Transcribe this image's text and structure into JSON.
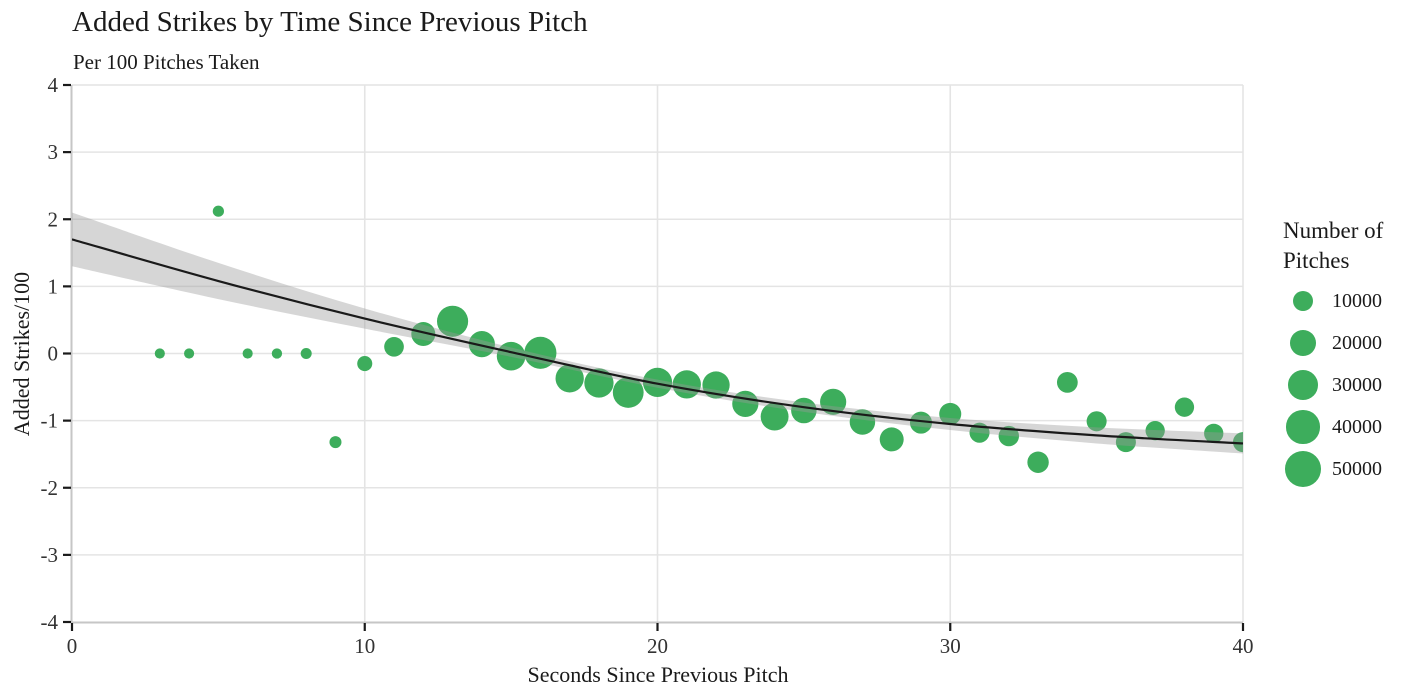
{
  "chart_data": {
    "type": "scatter",
    "title": "Added Strikes by Time Since Previous Pitch",
    "subtitle": "Per 100 Pitches Taken",
    "xlabel": "Seconds Since Previous Pitch",
    "ylabel": "Added Strikes/100",
    "xlim": [
      0,
      40
    ],
    "ylim": [
      -4,
      4
    ],
    "xticks": [
      0,
      10,
      20,
      30,
      40
    ],
    "yticks": [
      4,
      3,
      2,
      1,
      0,
      -1,
      -2,
      -3,
      -4
    ],
    "grid": "major-only",
    "legend": {
      "position": "right",
      "title_lines": [
        "Number of",
        "Pitches"
      ],
      "items": [
        {
          "label": "10000",
          "value": 10000
        },
        {
          "label": "20000",
          "value": 20000
        },
        {
          "label": "30000",
          "value": 30000
        },
        {
          "label": "40000",
          "value": 40000
        },
        {
          "label": "50000",
          "value": 50000
        }
      ]
    },
    "series": [
      {
        "name": "pitches-by-second-bin",
        "type": "bubble",
        "size_encoding": "pitches",
        "points": [
          {
            "x": 3,
            "y": 0.0,
            "pitches": 1500
          },
          {
            "x": 4,
            "y": 0.0,
            "pitches": 1500
          },
          {
            "x": 5,
            "y": 2.12,
            "pitches": 2000
          },
          {
            "x": 6,
            "y": 0.0,
            "pitches": 1500
          },
          {
            "x": 7,
            "y": 0.0,
            "pitches": 1600
          },
          {
            "x": 8,
            "y": 0.0,
            "pitches": 1900
          },
          {
            "x": 9,
            "y": -1.32,
            "pitches": 2400
          },
          {
            "x": 10,
            "y": -0.15,
            "pitches": 4500
          },
          {
            "x": 11,
            "y": 0.1,
            "pitches": 9500
          },
          {
            "x": 12,
            "y": 0.29,
            "pitches": 16500
          },
          {
            "x": 13,
            "y": 0.48,
            "pitches": 34000
          },
          {
            "x": 14,
            "y": 0.14,
            "pitches": 21000
          },
          {
            "x": 15,
            "y": -0.04,
            "pitches": 27000
          },
          {
            "x": 16,
            "y": 0.01,
            "pitches": 37000
          },
          {
            "x": 17,
            "y": -0.37,
            "pitches": 26000
          },
          {
            "x": 18,
            "y": -0.44,
            "pitches": 28500
          },
          {
            "x": 19,
            "y": -0.58,
            "pitches": 33000
          },
          {
            "x": 20,
            "y": -0.43,
            "pitches": 28500
          },
          {
            "x": 21,
            "y": -0.46,
            "pitches": 26000
          },
          {
            "x": 22,
            "y": -0.47,
            "pitches": 23500
          },
          {
            "x": 23,
            "y": -0.75,
            "pitches": 21000
          },
          {
            "x": 24,
            "y": -0.94,
            "pitches": 25000
          },
          {
            "x": 25,
            "y": -0.85,
            "pitches": 19500
          },
          {
            "x": 26,
            "y": -0.72,
            "pitches": 21000
          },
          {
            "x": 27,
            "y": -1.02,
            "pitches": 19500
          },
          {
            "x": 28,
            "y": -1.28,
            "pitches": 16500
          },
          {
            "x": 29,
            "y": -1.03,
            "pitches": 13000
          },
          {
            "x": 30,
            "y": -0.9,
            "pitches": 13000
          },
          {
            "x": 31,
            "y": -1.18,
            "pitches": 10000
          },
          {
            "x": 32,
            "y": -1.23,
            "pitches": 10500
          },
          {
            "x": 33,
            "y": -1.62,
            "pitches": 12000
          },
          {
            "x": 34,
            "y": -0.43,
            "pitches": 11000
          },
          {
            "x": 35,
            "y": -1.01,
            "pitches": 10000
          },
          {
            "x": 36,
            "y": -1.32,
            "pitches": 10000
          },
          {
            "x": 37,
            "y": -1.15,
            "pitches": 9000
          },
          {
            "x": 38,
            "y": -0.8,
            "pitches": 9000
          },
          {
            "x": 39,
            "y": -1.19,
            "pitches": 9000
          },
          {
            "x": 40,
            "y": -1.32,
            "pitches": 10000
          }
        ]
      },
      {
        "name": "smooth-trend",
        "type": "line",
        "points": [
          [
            0,
            1.7
          ],
          [
            5,
            1.08
          ],
          [
            10,
            0.52
          ],
          [
            15,
            0.02
          ],
          [
            20,
            -0.45
          ],
          [
            25,
            -0.8
          ],
          [
            30,
            -1.05
          ],
          [
            35,
            -1.22
          ],
          [
            40,
            -1.34
          ]
        ]
      },
      {
        "name": "confidence-band",
        "type": "band",
        "upper": [
          [
            0,
            2.1
          ],
          [
            5,
            1.35
          ],
          [
            10,
            0.67
          ],
          [
            15,
            0.09
          ],
          [
            20,
            -0.39
          ],
          [
            25,
            -0.73
          ],
          [
            30,
            -0.96
          ],
          [
            35,
            -1.1
          ],
          [
            40,
            -1.19
          ]
        ],
        "lower": [
          [
            0,
            1.3
          ],
          [
            5,
            0.81
          ],
          [
            10,
            0.37
          ],
          [
            15,
            -0.05
          ],
          [
            20,
            -0.51
          ],
          [
            25,
            -0.87
          ],
          [
            30,
            -1.14
          ],
          [
            35,
            -1.34
          ],
          [
            40,
            -1.49
          ]
        ]
      }
    ],
    "colors": {
      "bubble": "#3dad5c",
      "trend": "#1a1a1a",
      "band": "#999999",
      "band_opacity": 0.4,
      "grid": "#e4e4e4",
      "axis_line": "#c6c6c6",
      "tick": "#1a1a1a",
      "text": "#1a1a1a",
      "tick_label": "#333333",
      "background": "#ffffff"
    }
  }
}
